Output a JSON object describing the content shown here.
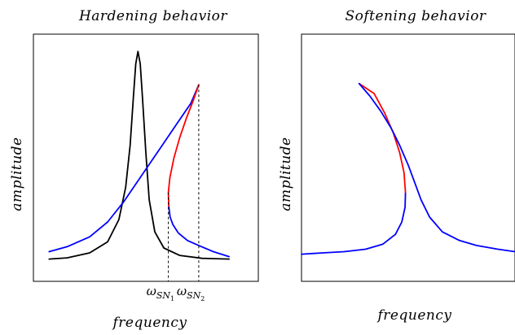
{
  "chart_data": [
    {
      "type": "line",
      "title": "Hardening behavior",
      "xlabel": "frequency",
      "ylabel": "amplitude",
      "xlim": [
        0,
        1
      ],
      "ylim": [
        0,
        1
      ],
      "grid": false,
      "markers": [
        {
          "label": "ω",
          "sub": "SN",
          "subsub": "1",
          "x": 0.6
        },
        {
          "label": "ω",
          "sub": "SN",
          "subsub": "2",
          "x": 0.735
        }
      ],
      "series": [
        {
          "color": "#000000",
          "points": [
            [
              0.07,
              0.09
            ],
            [
              0.15,
              0.095
            ],
            [
              0.25,
              0.115
            ],
            [
              0.33,
              0.16
            ],
            [
              0.38,
              0.25
            ],
            [
              0.41,
              0.38
            ],
            [
              0.43,
              0.55
            ],
            [
              0.445,
              0.75
            ],
            [
              0.455,
              0.88
            ],
            [
              0.465,
              0.93
            ],
            [
              0.475,
              0.88
            ],
            [
              0.485,
              0.74
            ],
            [
              0.5,
              0.52
            ],
            [
              0.515,
              0.33
            ],
            [
              0.54,
              0.2
            ],
            [
              0.58,
              0.135
            ],
            [
              0.65,
              0.105
            ],
            [
              0.75,
              0.093
            ],
            [
              0.87,
              0.09
            ]
          ]
        },
        {
          "color": "#0000ff",
          "points": [
            [
              0.07,
              0.12
            ],
            [
              0.15,
              0.14
            ],
            [
              0.25,
              0.18
            ],
            [
              0.33,
              0.24
            ],
            [
              0.4,
              0.32
            ],
            [
              0.46,
              0.4
            ],
            [
              0.52,
              0.48
            ],
            [
              0.58,
              0.56
            ],
            [
              0.64,
              0.64
            ],
            [
              0.7,
              0.72
            ],
            [
              0.735,
              0.795
            ]
          ]
        },
        {
          "color": "#ff0000",
          "points": [
            [
              0.735,
              0.795
            ],
            [
              0.71,
              0.73
            ],
            [
              0.68,
              0.66
            ],
            [
              0.65,
              0.58
            ],
            [
              0.625,
              0.5
            ],
            [
              0.607,
              0.42
            ],
            [
              0.6,
              0.36
            ],
            [
              0.602,
              0.3
            ]
          ]
        },
        {
          "color": "#0000ff",
          "points": [
            [
              0.602,
              0.3
            ],
            [
              0.608,
              0.26
            ],
            [
              0.62,
              0.23
            ],
            [
              0.645,
              0.195
            ],
            [
              0.685,
              0.165
            ],
            [
              0.735,
              0.145
            ],
            [
              0.8,
              0.12
            ],
            [
              0.87,
              0.1
            ]
          ]
        }
      ]
    },
    {
      "type": "line",
      "title": "Softening behavior",
      "xlabel": "frequency",
      "ylabel": "amplitude",
      "xlim": [
        0,
        1
      ],
      "ylim": [
        0,
        1
      ],
      "grid": false,
      "series": [
        {
          "color": "#0000ff",
          "points": [
            [
              0.0,
              0.11
            ],
            [
              0.1,
              0.115
            ],
            [
              0.2,
              0.12
            ],
            [
              0.3,
              0.13
            ],
            [
              0.38,
              0.15
            ],
            [
              0.44,
              0.19
            ],
            [
              0.47,
              0.24
            ],
            [
              0.485,
              0.3
            ],
            [
              0.487,
              0.36
            ]
          ]
        },
        {
          "color": "#ff0000",
          "points": [
            [
              0.487,
              0.36
            ],
            [
              0.48,
              0.44
            ],
            [
              0.46,
              0.52
            ],
            [
              0.43,
              0.6
            ],
            [
              0.39,
              0.68
            ],
            [
              0.34,
              0.76
            ],
            [
              0.27,
              0.8
            ]
          ]
        },
        {
          "color": "#0000ff",
          "points": [
            [
              0.27,
              0.8
            ],
            [
              0.32,
              0.75
            ],
            [
              0.37,
              0.69
            ],
            [
              0.42,
              0.62
            ],
            [
              0.46,
              0.55
            ],
            [
              0.5,
              0.47
            ],
            [
              0.53,
              0.4
            ],
            [
              0.56,
              0.33
            ],
            [
              0.6,
              0.26
            ],
            [
              0.66,
              0.2
            ],
            [
              0.74,
              0.165
            ],
            [
              0.82,
              0.145
            ],
            [
              0.92,
              0.13
            ],
            [
              1.0,
              0.12
            ]
          ]
        }
      ]
    }
  ]
}
